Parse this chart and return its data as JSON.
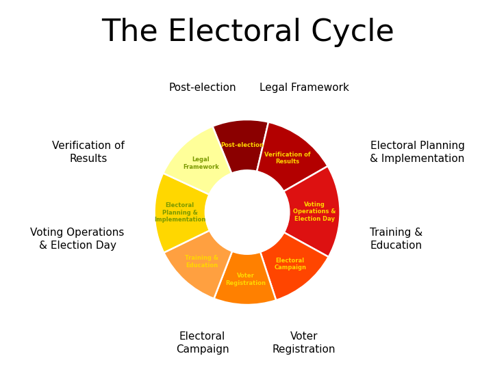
{
  "title": "The Electoral Cycle",
  "title_bg": "#b8d8df",
  "title_fontsize": 32,
  "title_color": "#000000",
  "segments": [
    {
      "label": "Post-election",
      "inner_label": "Post-election",
      "size": 45,
      "color": "#8B0000",
      "text_color": "#FFD700"
    },
    {
      "label": "Verification of\nResults",
      "inner_label": "Verification of\nResults",
      "size": 60,
      "color": "#B30000",
      "text_color": "#FFD700"
    },
    {
      "label": "Voting Operations\n& Election Day",
      "inner_label": "Voting\nOperations &\nElection Day",
      "size": 75,
      "color": "#DD1111",
      "text_color": "#FFD700"
    },
    {
      "label": "Electoral\nCampaign",
      "inner_label": "Electoral\nCampaign",
      "size": 55,
      "color": "#FF4500",
      "text_color": "#FFD700"
    },
    {
      "label": "Voter\nRegistration",
      "inner_label": "Voter\nRegistration",
      "size": 50,
      "color": "#FF8000",
      "text_color": "#FFD700"
    },
    {
      "label": "Training &\nEducation",
      "inner_label": "Training &\nEducation",
      "size": 55,
      "color": "#FFA040",
      "text_color": "#FFD700"
    },
    {
      "label": "Electoral Planning\n& Implementation",
      "inner_label": "Electoral\nPlanning &\nImplementation",
      "size": 65,
      "color": "#FFD700",
      "text_color": "#7A9900"
    },
    {
      "label": "Legal Framework",
      "inner_label": "Legal\nFramework",
      "size": 55,
      "color": "#FFFF99",
      "text_color": "#7A9900"
    }
  ],
  "bg_color": "#ffffff",
  "start_angle": 112,
  "outer_r": 0.62,
  "inner_r": 0.28
}
